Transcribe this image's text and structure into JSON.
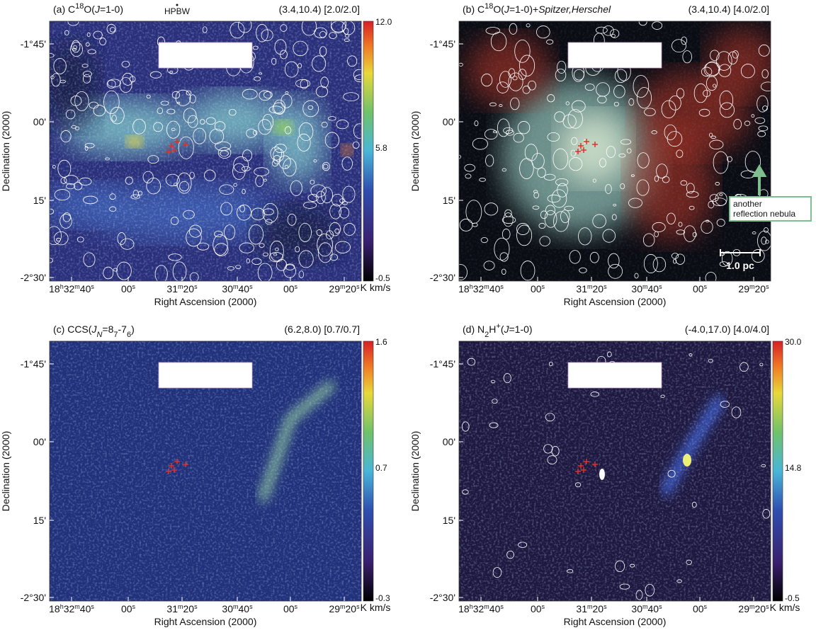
{
  "panels": [
    {
      "title": [
        "(a) C",
        "18",
        "O(",
        "J",
        "=1-0)"
      ],
      "params": "(3.4,10.4) [2.0/2.0]",
      "colorbar": {
        "ticks": [
          "12.0",
          "5.8",
          "-0.5"
        ],
        "unit": "K km/s"
      },
      "annotations": [
        "HPBW"
      ]
    },
    {
      "title": [
        "(b) C",
        "18",
        "O(",
        "J",
        "=1-0)+",
        "Spitzer,Herschel"
      ],
      "params": "(3.4,10.4) [4.0/2.0]",
      "annotations": [
        "another",
        "reflection nebula",
        "1.0 pc"
      ]
    },
    {
      "title": [
        "(c) CCS(",
        "J",
        "N",
        "=8",
        "7",
        "-7",
        "6",
        ")"
      ],
      "params": "(6.2,8.0) [0.7/0.7]",
      "colorbar": {
        "ticks": [
          "1.6",
          "0.7",
          "-0.3"
        ],
        "unit": "K km/s"
      }
    },
    {
      "title": [
        "(d) N",
        "2",
        "H",
        "+",
        "(",
        "J",
        "=1-0)"
      ],
      "params": "(-4.0,17.0) [4.0/4.0]",
      "colorbar": {
        "ticks": [
          "30.0",
          "14.8",
          "-0.5"
        ],
        "unit": "K km/s"
      }
    }
  ],
  "axes": {
    "x_label": "Right Ascension (2000)",
    "y_label": "Declination (2000)",
    "x_ticks": [
      [
        "18",
        "h",
        "32",
        "m",
        "40",
        "s"
      ],
      [
        "00",
        "s"
      ],
      [
        "31",
        "m",
        "20",
        "s"
      ],
      [
        "30",
        "m",
        "40",
        "s"
      ],
      [
        "00",
        "s"
      ],
      [
        "29",
        "m",
        "20",
        "s"
      ]
    ],
    "y_ticks": [
      "-1°45'",
      "00'",
      "15'",
      "-2°30'"
    ]
  }
}
